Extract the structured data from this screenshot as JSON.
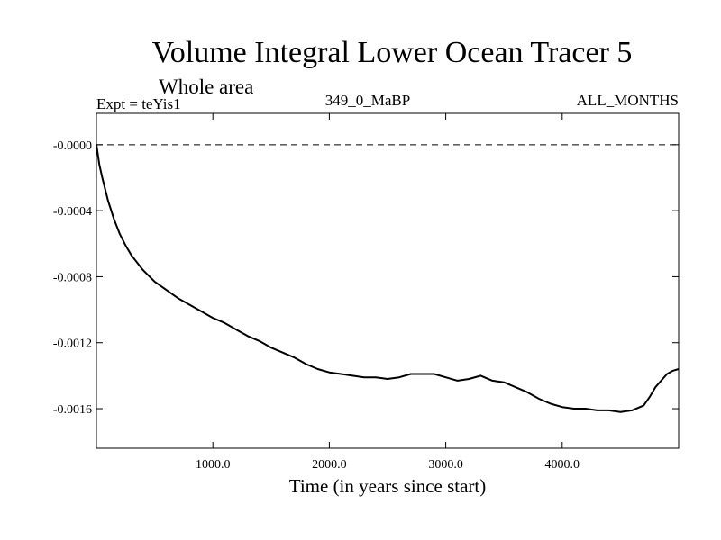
{
  "chart_data": {
    "type": "line",
    "title": "Volume Integral Lower Ocean Tracer 5",
    "subtitle": "Whole area",
    "expt_label": "Expt = teYis1",
    "center_label": "349_0_MaBP",
    "right_label": "ALL_MONTHS",
    "xlabel": "Time (in years since start)",
    "ylabel": "",
    "xlim": [
      0,
      5000
    ],
    "ylim": [
      -0.00184,
      0.00019
    ],
    "xticks": [
      1000,
      2000,
      3000,
      4000
    ],
    "xtick_labels": [
      "1000.0",
      "2000.0",
      "3000.0",
      "4000.0"
    ],
    "yticks": [
      0.0,
      -0.0004,
      -0.0008,
      -0.0012,
      -0.0016
    ],
    "ytick_labels": [
      "-0.0000",
      "-0.0004",
      "-0.0008",
      "-0.0012",
      "-0.0016"
    ],
    "reference_line": 0.0,
    "series": [
      {
        "name": "Lower Ocean Tracer 5",
        "x": [
          0,
          25,
          50,
          100,
          150,
          200,
          250,
          300,
          400,
          500,
          600,
          700,
          800,
          900,
          1000,
          1100,
          1200,
          1300,
          1400,
          1500,
          1600,
          1700,
          1800,
          1900,
          2000,
          2100,
          2200,
          2300,
          2400,
          2500,
          2600,
          2700,
          2800,
          2900,
          3000,
          3100,
          3200,
          3300,
          3400,
          3500,
          3600,
          3700,
          3800,
          3900,
          4000,
          4100,
          4200,
          4300,
          4400,
          4500,
          4600,
          4700,
          4750,
          4800,
          4850,
          4900,
          4950,
          5000
        ],
        "y": [
          0.0,
          -0.00012,
          -0.0002,
          -0.00034,
          -0.00045,
          -0.00054,
          -0.00061,
          -0.00067,
          -0.00076,
          -0.00083,
          -0.00088,
          -0.00093,
          -0.00097,
          -0.00101,
          -0.00105,
          -0.00108,
          -0.00112,
          -0.00116,
          -0.00119,
          -0.00123,
          -0.00126,
          -0.00129,
          -0.00133,
          -0.00136,
          -0.00138,
          -0.00139,
          -0.0014,
          -0.00141,
          -0.00141,
          -0.00142,
          -0.00141,
          -0.00139,
          -0.00139,
          -0.00139,
          -0.00141,
          -0.00143,
          -0.00142,
          -0.0014,
          -0.00143,
          -0.00144,
          -0.00147,
          -0.0015,
          -0.00154,
          -0.00157,
          -0.00159,
          -0.0016,
          -0.0016,
          -0.00161,
          -0.00161,
          -0.00162,
          -0.00161,
          -0.00158,
          -0.00153,
          -0.00147,
          -0.00143,
          -0.00139,
          -0.00137,
          -0.00136
        ]
      }
    ]
  }
}
